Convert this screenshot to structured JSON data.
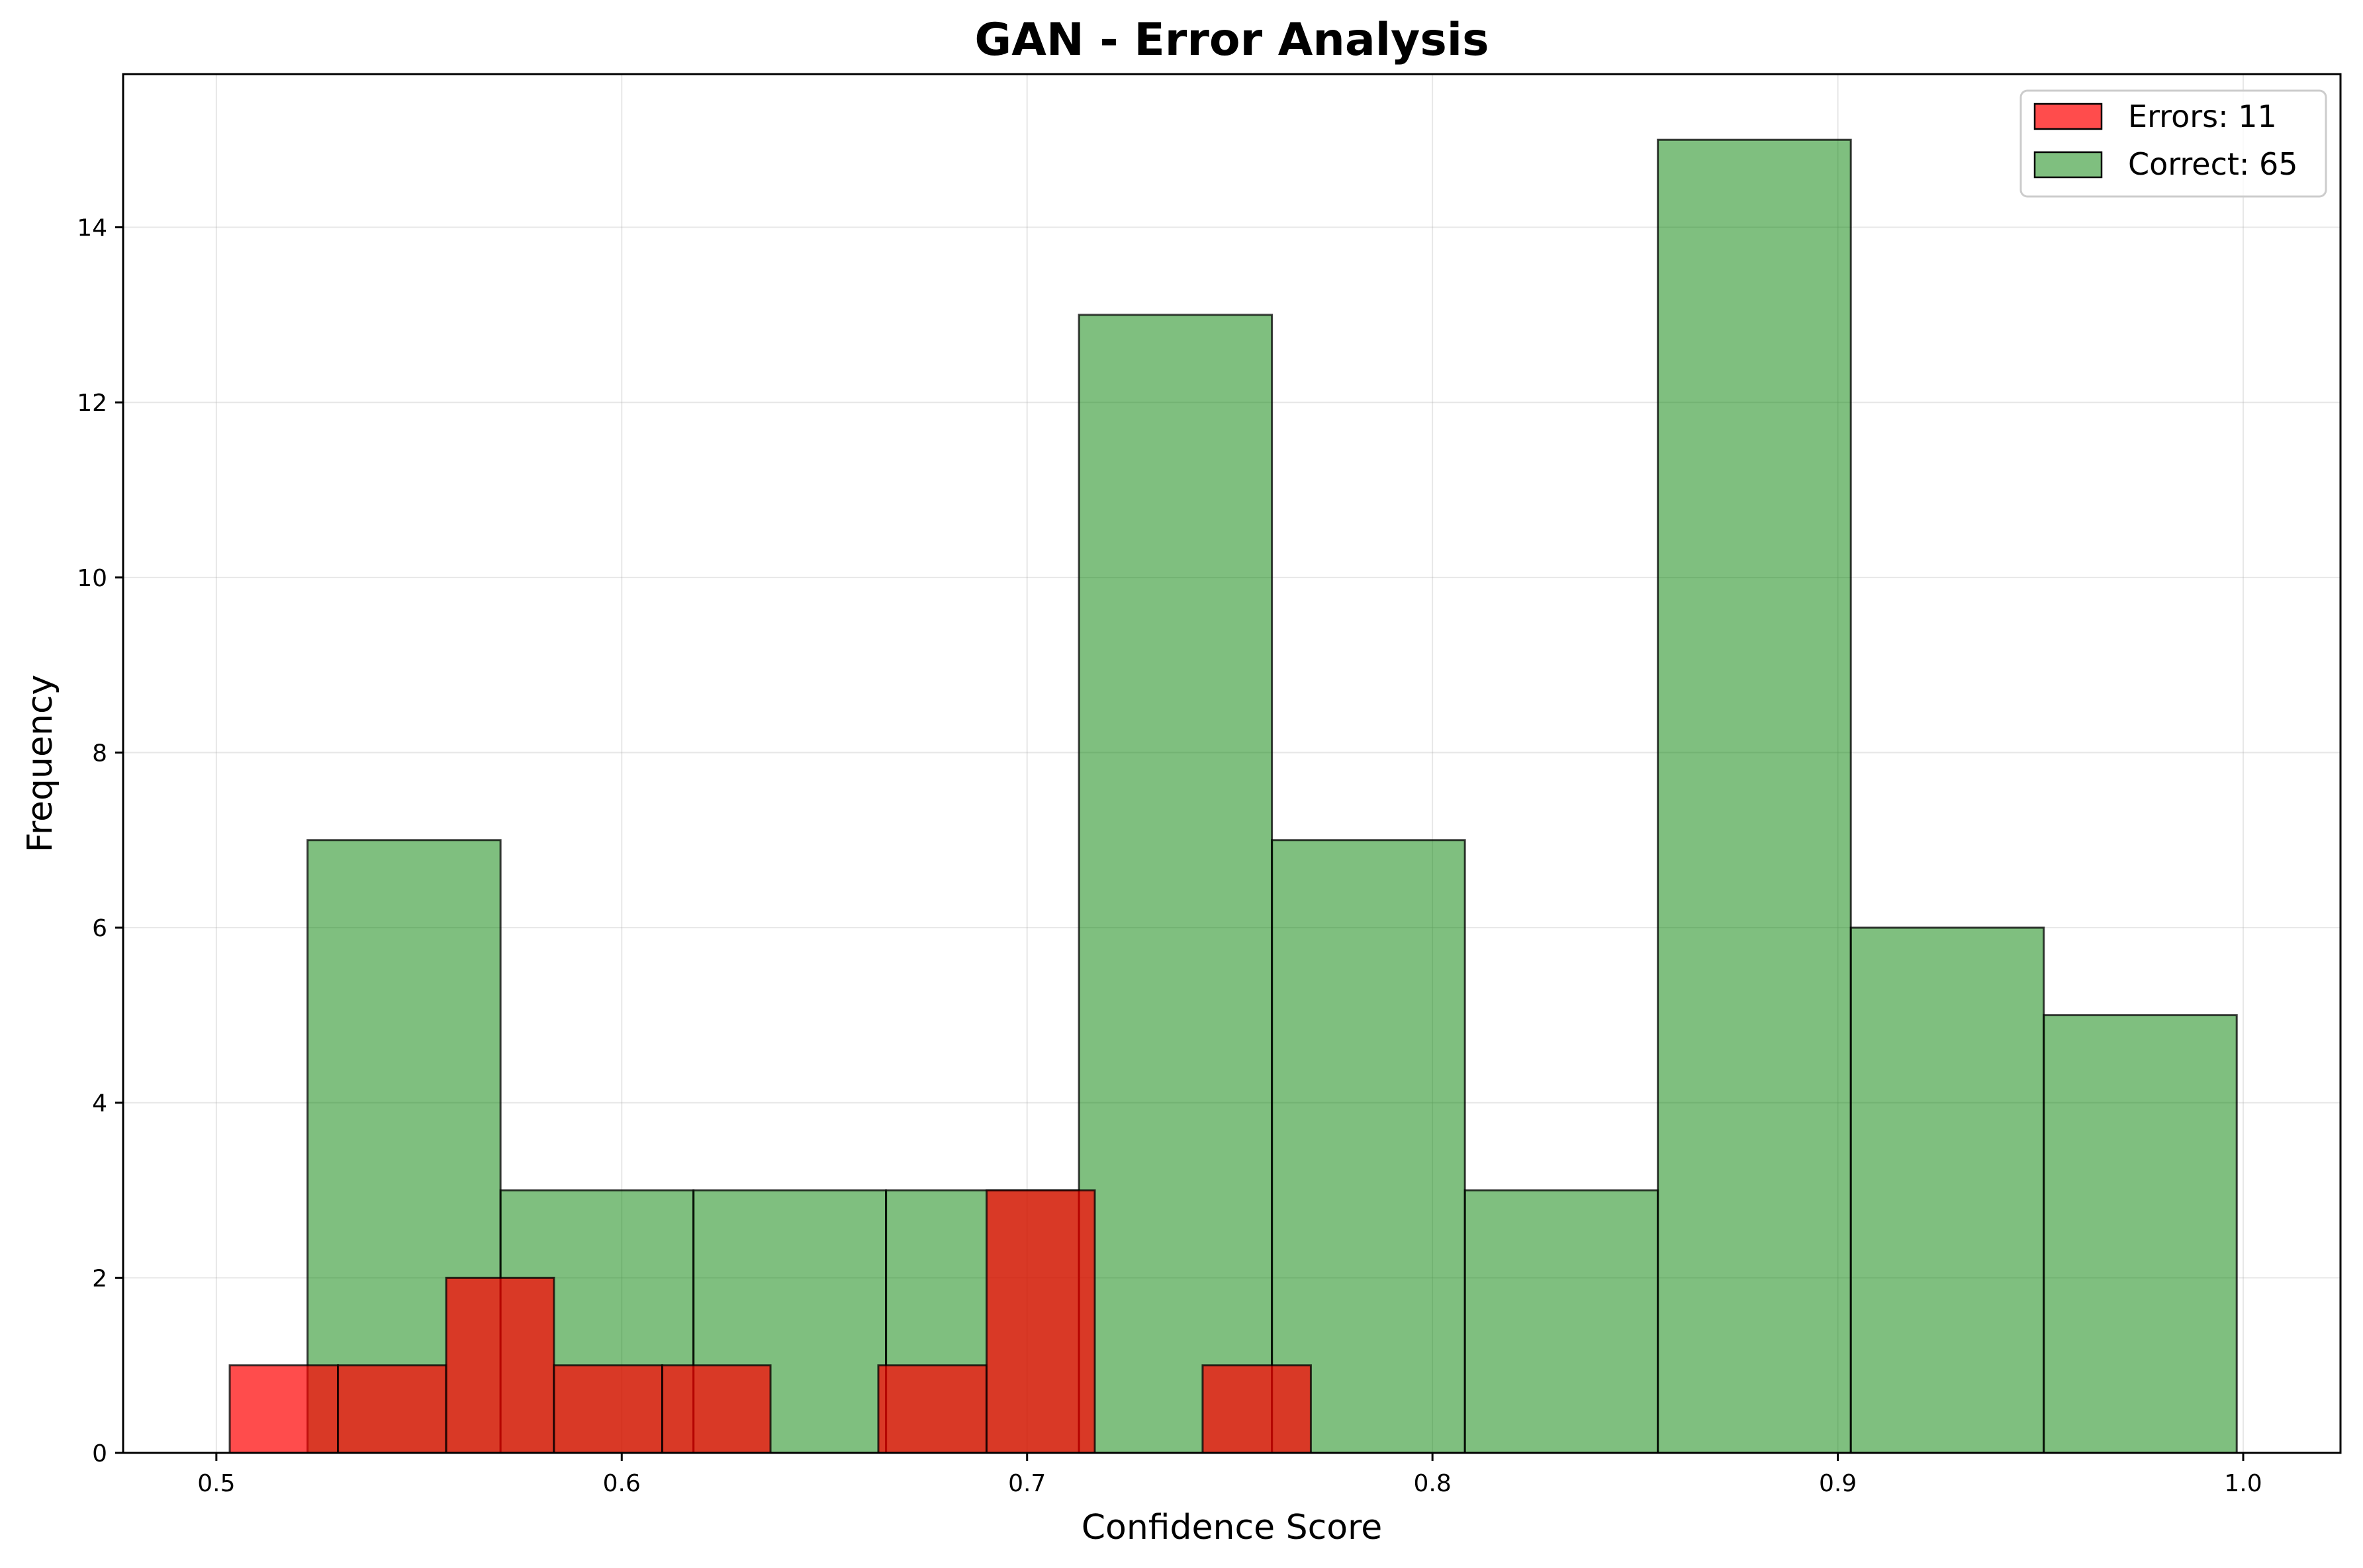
{
  "chart_data": {
    "type": "histogram",
    "title": "GAN - Error Analysis",
    "xlabel": "Confidence Score",
    "ylabel": "Frequency",
    "xlim": [
      0.477,
      1.024
    ],
    "ylim": [
      0,
      15.75
    ],
    "grid": true,
    "legend_position": "top-right",
    "xticks": [
      0.5,
      0.6,
      0.7,
      0.8,
      0.9,
      1.0
    ],
    "xtick_labels": [
      "0.5",
      "0.6",
      "0.7",
      "0.8",
      "0.9",
      "1.0"
    ],
    "yticks": [
      0,
      2,
      4,
      6,
      8,
      10,
      12,
      14
    ],
    "ytick_labels": [
      "0",
      "2",
      "4",
      "6",
      "8",
      "10",
      "12",
      "14"
    ],
    "series": [
      {
        "name": "Correct: 65",
        "color": "#008000",
        "opacity": 0.5,
        "bins": [
          {
            "x0": 0.5225,
            "x1": 0.5701,
            "count": 7
          },
          {
            "x0": 0.5701,
            "x1": 0.6177,
            "count": 3
          },
          {
            "x0": 0.6177,
            "x1": 0.6652,
            "count": 3
          },
          {
            "x0": 0.6652,
            "x1": 0.7128,
            "count": 3
          },
          {
            "x0": 0.7128,
            "x1": 0.7604,
            "count": 13
          },
          {
            "x0": 0.7604,
            "x1": 0.808,
            "count": 7
          },
          {
            "x0": 0.808,
            "x1": 0.8556,
            "count": 3
          },
          {
            "x0": 0.8556,
            "x1": 0.9032,
            "count": 15
          },
          {
            "x0": 0.9032,
            "x1": 0.9508,
            "count": 6
          },
          {
            "x0": 0.9508,
            "x1": 0.9984,
            "count": 5
          }
        ]
      },
      {
        "name": "Errors: 11",
        "color": "#ff0000",
        "opacity": 0.7,
        "bins": [
          {
            "x0": 0.5033,
            "x1": 0.53,
            "count": 1
          },
          {
            "x0": 0.53,
            "x1": 0.5567,
            "count": 1
          },
          {
            "x0": 0.5567,
            "x1": 0.5833,
            "count": 2
          },
          {
            "x0": 0.5833,
            "x1": 0.61,
            "count": 1
          },
          {
            "x0": 0.61,
            "x1": 0.6367,
            "count": 1
          },
          {
            "x0": 0.6367,
            "x1": 0.6633,
            "count": 0
          },
          {
            "x0": 0.6633,
            "x1": 0.69,
            "count": 1
          },
          {
            "x0": 0.69,
            "x1": 0.7167,
            "count": 3
          },
          {
            "x0": 0.7167,
            "x1": 0.7433,
            "count": 0
          },
          {
            "x0": 0.7433,
            "x1": 0.77,
            "count": 1
          }
        ]
      }
    ],
    "legend": [
      "Errors: 11",
      "Correct: 65"
    ]
  }
}
